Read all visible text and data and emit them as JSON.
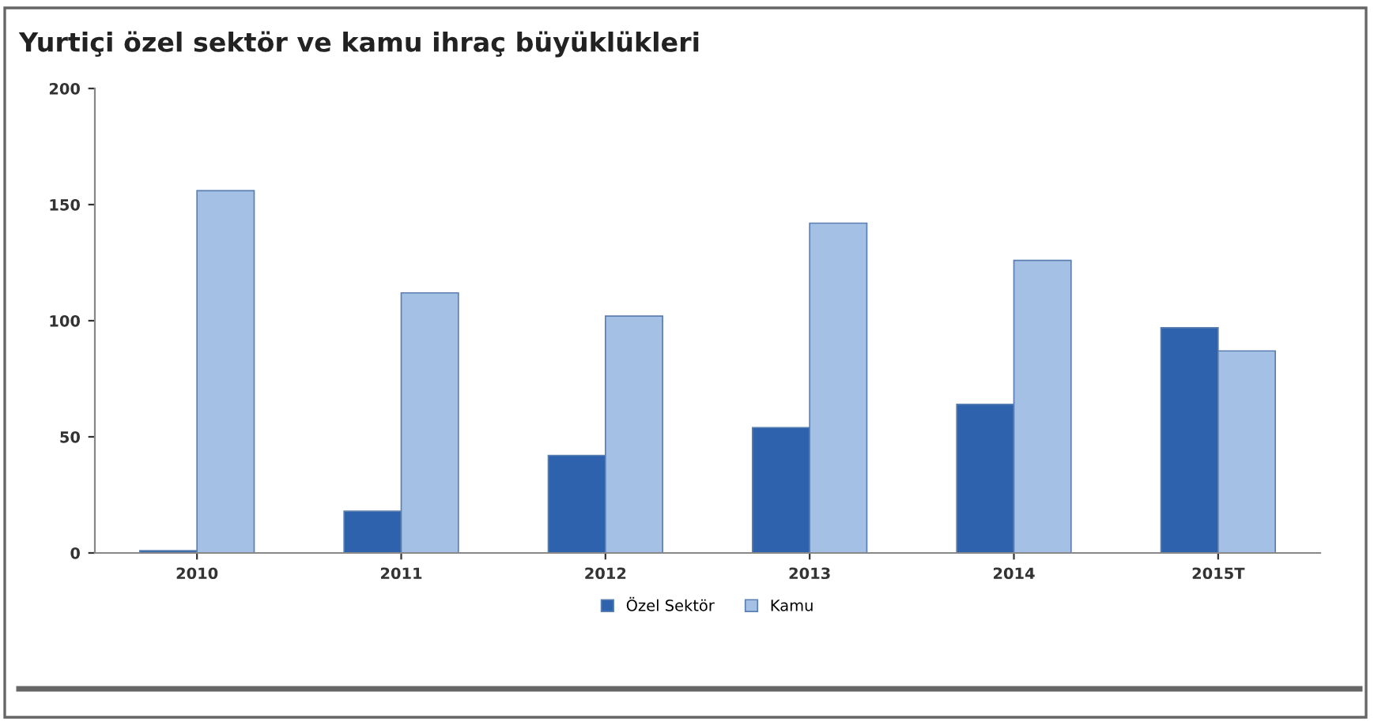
{
  "chart_data": {
    "type": "bar",
    "title": "Yurtiçi özel sektör ve kamu ihraç büyüklükleri",
    "categories": [
      "2010",
      "2011",
      "2012",
      "2013",
      "2014",
      "2015T"
    ],
    "series": [
      {
        "name": "Özel Sektör",
        "color": "#2e62ad",
        "values": [
          1,
          18,
          42,
          54,
          64,
          97
        ]
      },
      {
        "name": "Kamu",
        "color": "#a4c0e4",
        "values": [
          156,
          112,
          102,
          142,
          126,
          87
        ]
      }
    ],
    "ylim": [
      0,
      200
    ],
    "yticks": [
      0,
      50,
      100,
      150,
      200
    ],
    "grid": false,
    "legend": "bottom"
  }
}
